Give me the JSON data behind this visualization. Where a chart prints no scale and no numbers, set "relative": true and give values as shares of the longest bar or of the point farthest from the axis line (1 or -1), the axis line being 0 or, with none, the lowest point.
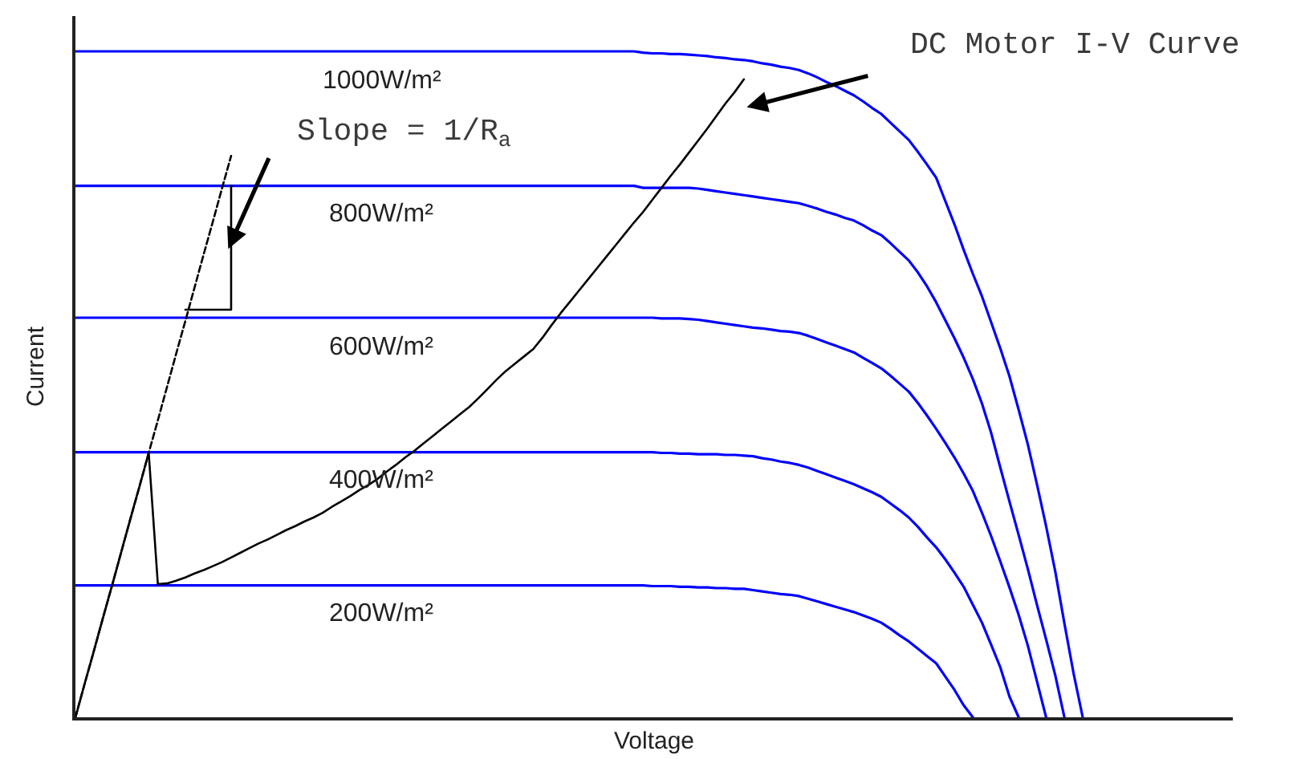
{
  "chart_data": {
    "type": "line",
    "relative": true,
    "xlabel": "Voltage",
    "ylabel": "Current",
    "categories": [
      null,
      null,
      null,
      null,
      null,
      null,
      null,
      null,
      null,
      null,
      null,
      null,
      null,
      null,
      null,
      null,
      null,
      null,
      null,
      null,
      null,
      null,
      null,
      null,
      null,
      null,
      null,
      null,
      null,
      null,
      null,
      null,
      null,
      null,
      null,
      null,
      null,
      null,
      null,
      null,
      null,
      null,
      null,
      null,
      null,
      null,
      null,
      null,
      null,
      null,
      null,
      null,
      null,
      null,
      null,
      null,
      null,
      null,
      null,
      null,
      null,
      null,
      null,
      null,
      null,
      null,
      null,
      null,
      null,
      null,
      null,
      null,
      null,
      null,
      null,
      null,
      null,
      null,
      null,
      null,
      null,
      null,
      null,
      null,
      null,
      null,
      null,
      null,
      null,
      null,
      null,
      null,
      null,
      null,
      null,
      null,
      null,
      null,
      null,
      null,
      null,
      null,
      null,
      null,
      null,
      null,
      null,
      null,
      null,
      null,
      null
    ],
    "series": [
      {
        "name": "1000W/m²",
        "color": "#0000ff",
        "values": [
          1,
          1,
          1,
          1,
          1,
          1,
          1,
          1,
          1,
          1,
          1,
          1,
          1,
          1,
          1,
          1,
          1,
          1,
          1,
          1,
          1,
          1,
          1,
          1,
          1,
          1,
          1,
          1,
          1,
          1,
          1,
          1,
          1,
          1,
          1,
          1,
          1,
          1,
          1,
          1,
          1,
          1,
          1,
          1,
          1,
          1,
          1,
          1,
          1,
          1,
          1,
          1,
          1,
          1,
          1,
          1,
          1,
          1,
          1,
          1,
          1,
          1,
          0.998,
          0.997,
          0.997,
          0.996,
          0.996,
          0.995,
          0.994,
          0.993,
          0.991,
          0.99,
          0.988,
          0.987,
          0.985,
          0.982,
          0.98,
          0.977,
          0.975,
          0.972,
          0.967,
          0.961,
          0.954,
          0.948,
          0.941,
          0.934,
          0.925,
          0.915,
          0.906,
          0.893,
          0.88,
          0.867,
          0.849,
          0.83,
          0.81,
          0.775,
          0.74,
          0.702,
          0.666,
          0.632,
          0.593,
          0.554,
          0.512,
          0.462,
          0.41,
          0.35,
          0.287,
          0.219,
          0.141,
          0.066,
          0
        ]
      },
      {
        "name": "800W/m²",
        "color": "#0000ff",
        "values": [
          0.798,
          0.798,
          0.798,
          0.798,
          0.798,
          0.798,
          0.798,
          0.798,
          0.798,
          0.798,
          0.798,
          0.798,
          0.798,
          0.798,
          0.798,
          0.798,
          0.798,
          0.798,
          0.798,
          0.798,
          0.798,
          0.798,
          0.798,
          0.798,
          0.798,
          0.798,
          0.798,
          0.798,
          0.798,
          0.798,
          0.798,
          0.798,
          0.798,
          0.798,
          0.798,
          0.798,
          0.798,
          0.798,
          0.798,
          0.798,
          0.798,
          0.798,
          0.798,
          0.798,
          0.798,
          0.798,
          0.798,
          0.798,
          0.798,
          0.798,
          0.798,
          0.798,
          0.798,
          0.798,
          0.798,
          0.798,
          0.798,
          0.798,
          0.798,
          0.798,
          0.798,
          0.798,
          0.795,
          0.795,
          0.795,
          0.795,
          0.795,
          0.795,
          0.794,
          0.792,
          0.79,
          0.788,
          0.786,
          0.784,
          0.782,
          0.78,
          0.778,
          0.776,
          0.774,
          0.772,
          0.768,
          0.764,
          0.759,
          0.755,
          0.75,
          0.746,
          0.739,
          0.731,
          0.724,
          0.712,
          0.699,
          0.686,
          0.668,
          0.647,
          0.623,
          0.596,
          0.569,
          0.54,
          0.508,
          0.471,
          0.427,
          0.375,
          0.324,
          0.274,
          0.223,
          0.169,
          0.117,
          0.063,
          0,
          null,
          null
        ]
      },
      {
        "name": "600W/m²",
        "color": "#0000ff",
        "values": [
          0.6,
          0.6,
          0.6,
          0.6,
          0.6,
          0.6,
          0.6,
          0.6,
          0.6,
          0.6,
          0.6,
          0.6,
          0.6,
          0.6,
          0.6,
          0.6,
          0.6,
          0.6,
          0.6,
          0.6,
          0.6,
          0.6,
          0.6,
          0.6,
          0.6,
          0.6,
          0.6,
          0.6,
          0.6,
          0.6,
          0.6,
          0.6,
          0.6,
          0.6,
          0.6,
          0.6,
          0.6,
          0.6,
          0.6,
          0.6,
          0.6,
          0.6,
          0.6,
          0.6,
          0.6,
          0.6,
          0.6,
          0.6,
          0.6,
          0.6,
          0.6,
          0.6,
          0.6,
          0.6,
          0.6,
          0.6,
          0.6,
          0.6,
          0.6,
          0.6,
          0.6,
          0.6,
          0.6,
          0.6,
          0.599,
          0.599,
          0.599,
          0.598,
          0.597,
          0.595,
          0.593,
          0.591,
          0.589,
          0.587,
          0.585,
          0.584,
          0.582,
          0.58,
          0.579,
          0.577,
          0.573,
          0.568,
          0.563,
          0.558,
          0.553,
          0.548,
          0.54,
          0.532,
          0.524,
          0.513,
          0.501,
          0.489,
          0.472,
          0.453,
          0.433,
          0.412,
          0.39,
          0.366,
          0.34,
          0.307,
          0.272,
          0.234,
          0.195,
          0.154,
          0.108,
          0.054,
          0,
          null,
          null,
          null,
          null
        ]
      },
      {
        "name": "400W/m²",
        "color": "#0000ff",
        "values": [
          0.398,
          0.398,
          0.398,
          0.398,
          0.398,
          0.398,
          0.398,
          0.398,
          0.398,
          0.398,
          0.398,
          0.398,
          0.398,
          0.398,
          0.398,
          0.398,
          0.398,
          0.398,
          0.398,
          0.398,
          0.398,
          0.398,
          0.398,
          0.398,
          0.398,
          0.398,
          0.398,
          0.398,
          0.398,
          0.398,
          0.398,
          0.398,
          0.398,
          0.398,
          0.398,
          0.398,
          0.398,
          0.398,
          0.398,
          0.398,
          0.398,
          0.398,
          0.398,
          0.398,
          0.398,
          0.398,
          0.398,
          0.398,
          0.398,
          0.398,
          0.398,
          0.398,
          0.398,
          0.398,
          0.398,
          0.398,
          0.398,
          0.398,
          0.398,
          0.398,
          0.398,
          0.398,
          0.398,
          0.398,
          0.397,
          0.397,
          0.396,
          0.396,
          0.395,
          0.395,
          0.395,
          0.394,
          0.394,
          0.393,
          0.392,
          0.389,
          0.387,
          0.384,
          0.382,
          0.379,
          0.375,
          0.37,
          0.365,
          0.36,
          0.355,
          0.35,
          0.344,
          0.338,
          0.331,
          0.321,
          0.311,
          0.3,
          0.286,
          0.27,
          0.255,
          0.237,
          0.217,
          0.196,
          0.169,
          0.142,
          0.109,
          0.075,
          0.031,
          0,
          null,
          null,
          null,
          null,
          null,
          null,
          null
        ]
      },
      {
        "name": "200W/m²",
        "color": "#0000ff",
        "values": [
          0.198,
          0.198,
          0.198,
          0.198,
          0.198,
          0.198,
          0.198,
          0.198,
          0.198,
          0.198,
          0.198,
          0.198,
          0.198,
          0.198,
          0.198,
          0.198,
          0.198,
          0.198,
          0.198,
          0.198,
          0.198,
          0.198,
          0.198,
          0.198,
          0.198,
          0.198,
          0.198,
          0.198,
          0.198,
          0.198,
          0.198,
          0.198,
          0.198,
          0.198,
          0.198,
          0.198,
          0.198,
          0.198,
          0.198,
          0.198,
          0.198,
          0.198,
          0.198,
          0.198,
          0.198,
          0.198,
          0.198,
          0.198,
          0.198,
          0.198,
          0.198,
          0.198,
          0.198,
          0.198,
          0.198,
          0.198,
          0.198,
          0.198,
          0.198,
          0.198,
          0.198,
          0.198,
          0.198,
          0.197,
          0.197,
          0.197,
          0.196,
          0.196,
          0.195,
          0.195,
          0.194,
          0.194,
          0.193,
          0.193,
          0.191,
          0.189,
          0.187,
          0.185,
          0.184,
          0.182,
          0.178,
          0.174,
          0.17,
          0.166,
          0.162,
          0.158,
          0.153,
          0.148,
          0.142,
          0.133,
          0.123,
          0.114,
          0.103,
          0.092,
          0.081,
          0.061,
          0.041,
          0.018,
          0,
          null,
          null,
          null,
          null,
          null,
          null,
          null,
          null,
          null,
          null,
          null,
          null
        ]
      },
      {
        "color": "#000000",
        "line_style": "dashed",
        "values": [
          0,
          0.05,
          0.099,
          0.149,
          0.198,
          0.248,
          0.298,
          0.347,
          0.397,
          0.446,
          0.496,
          0.546,
          0.595,
          0.645,
          0.695,
          0.744,
          0.794,
          0.843,
          null,
          null,
          null,
          null,
          null,
          null,
          null,
          null,
          null,
          null,
          null,
          null,
          null,
          null,
          null,
          null,
          null,
          null,
          null,
          null,
          null,
          null,
          null,
          null,
          null,
          null,
          null,
          null,
          null,
          null,
          null,
          null,
          null,
          null,
          null,
          null,
          null,
          null,
          null,
          null,
          null,
          null,
          null,
          null,
          null,
          null,
          null,
          null,
          null,
          null,
          null,
          null,
          null,
          null,
          null,
          null,
          null,
          null,
          null,
          null,
          null,
          null,
          null,
          null,
          null,
          null,
          null,
          null,
          null,
          null,
          null,
          null,
          null,
          null,
          null,
          null,
          null,
          null,
          null,
          null,
          null,
          null,
          null,
          null,
          null,
          null,
          null,
          null,
          null,
          null,
          null,
          null,
          null
        ]
      },
      {
        "color": "#000000",
        "values": [
          0,
          0.05,
          0.099,
          0.149,
          0.198,
          0.248,
          0.298,
          0.347,
          0.397,
          0.2,
          0.201,
          0.205,
          0.21,
          0.216,
          0.221,
          0.227,
          0.233,
          0.24,
          0.247,
          0.254,
          0.261,
          0.267,
          0.274,
          0.281,
          0.287,
          0.294,
          0.3,
          0.307,
          0.316,
          0.324,
          0.332,
          0.341,
          0.349,
          0.358,
          0.369,
          0.379,
          0.39,
          0.4,
          0.411,
          0.422,
          0.433,
          0.444,
          0.455,
          0.466,
          0.479,
          0.493,
          0.507,
          0.52,
          0.531,
          0.542,
          0.553,
          0.57,
          0.589,
          0.607,
          0.624,
          0.641,
          0.658,
          0.675,
          0.692,
          0.709,
          0.726,
          0.743,
          0.759,
          0.777,
          0.795,
          0.813,
          0.83,
          0.848,
          0.866,
          0.884,
          0.903,
          0.922,
          0.939,
          0.958,
          null,
          null,
          null,
          null,
          null,
          null,
          null,
          null,
          null,
          null,
          null,
          null,
          null,
          null,
          null,
          null,
          null,
          null,
          null,
          null,
          null,
          null,
          null,
          null,
          null,
          null,
          null,
          null,
          null,
          null,
          null,
          null,
          null,
          null,
          null,
          null,
          null
        ]
      },
      {
        "type": "step",
        "color": "#000000",
        "values": [
          null,
          null,
          null,
          null,
          null,
          null,
          null,
          null,
          null,
          null,
          null,
          null,
          0.612,
          0.612,
          0.612,
          0.612,
          0.612,
          0.798,
          null,
          null,
          null,
          null,
          null,
          null,
          null,
          null,
          null,
          null,
          null,
          null,
          null,
          null,
          null,
          null,
          null,
          null,
          null,
          null,
          null,
          null,
          null,
          null,
          null,
          null,
          null,
          null,
          null,
          null,
          null,
          null,
          null,
          null,
          null,
          null,
          null,
          null,
          null,
          null,
          null,
          null,
          null,
          null,
          null,
          null,
          null,
          null,
          null,
          null,
          null,
          null,
          null,
          null,
          null,
          null,
          null,
          null,
          null,
          null,
          null,
          null,
          null,
          null,
          null,
          null,
          null,
          null,
          null,
          null,
          null,
          null,
          null,
          null,
          null,
          null,
          null,
          null,
          null,
          null,
          null,
          null,
          null,
          null,
          null,
          null,
          null,
          null,
          null,
          null,
          null,
          null,
          null
        ]
      }
    ],
    "annotations": [
      "Slope = 1/R$_{a}$",
      "DC Motor I-V Curve"
    ]
  }
}
